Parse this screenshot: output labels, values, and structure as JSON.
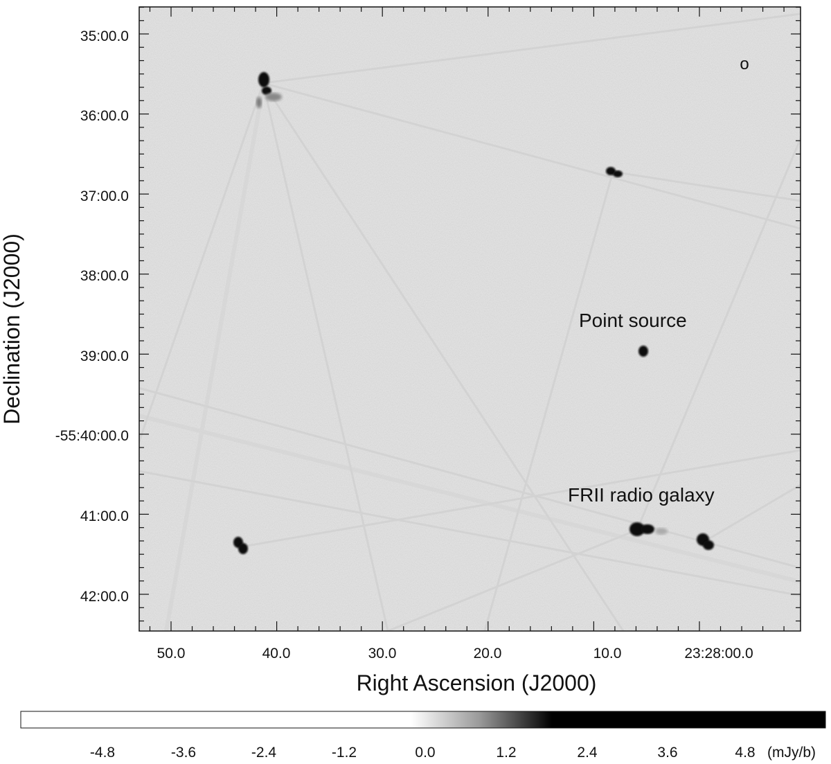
{
  "figure": {
    "x_axis_label": "Right Ascension (J2000)",
    "y_axis_label": "Declination (J2000)",
    "x_ticks": [
      "50.0",
      "40.0",
      "30.0",
      "20.0",
      "10.0",
      "23:28:00.0"
    ],
    "y_ticks": [
      "35:00.0",
      "36:00.0",
      "37:00.0",
      "38:00.0",
      "39:00.0",
      "-55:40:00.0",
      "41:00.0",
      "42:00.0"
    ],
    "beam_marker": "o",
    "annotations": {
      "point_source": "Point source",
      "frii": "FRII radio galaxy"
    }
  },
  "colorbar": {
    "ticks": [
      "-4.8",
      "-3.6",
      "-2.4",
      "-1.2",
      "0.0",
      "1.2",
      "2.4",
      "3.6",
      "4.8"
    ],
    "unit": "(mJy/b)",
    "colors": {
      "low": "#ffffff",
      "mid": "#9a9a9a",
      "high": "#000000"
    }
  },
  "colors": {
    "background_map": "#e4e4e4",
    "sources": "#0a0a0a",
    "frame": "#111111"
  }
}
